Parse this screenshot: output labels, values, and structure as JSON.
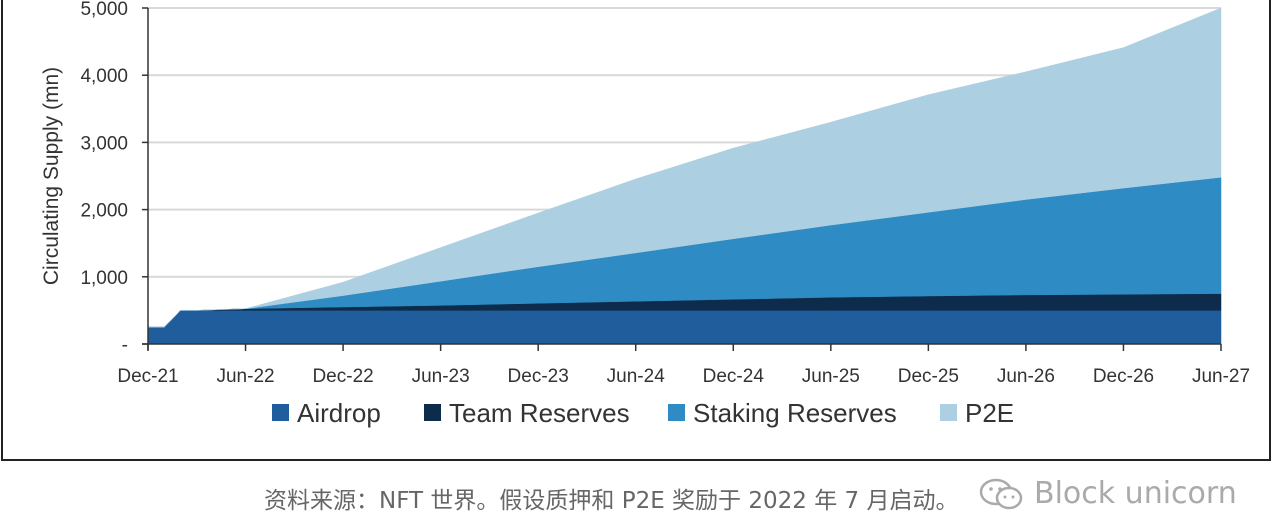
{
  "chart_data": {
    "type": "area",
    "stacked": true,
    "ylabel": "Circulating Supply (mn)",
    "xlabel": "",
    "ylim": [
      0,
      5000
    ],
    "yticks": [
      0,
      1000,
      2000,
      3000,
      4000,
      5000
    ],
    "ytick_labels": [
      "-",
      "1,000",
      "2,000",
      "3,000",
      "4,000",
      "5,000"
    ],
    "grid": "horizontal",
    "legend_position": "bottom",
    "x": [
      "Dec-21",
      "Jan-22",
      "Feb-22",
      "Mar-22",
      "Jun-22",
      "Dec-22",
      "Jun-23",
      "Dec-23",
      "Jun-24",
      "Dec-24",
      "Jun-25",
      "Dec-25",
      "Jun-26",
      "Dec-26",
      "Jun-27"
    ],
    "xtick_labels": [
      "Dec-21",
      "Jun-22",
      "Dec-22",
      "Jun-23",
      "Dec-23",
      "Jun-24",
      "Dec-24",
      "Jun-25",
      "Dec-25",
      "Jun-26",
      "Dec-26",
      "Jun-27"
    ],
    "series": [
      {
        "name": "Airdrop",
        "color": "#1f5d9c",
        "values": [
          250,
          250,
          500,
          500,
          500,
          500,
          500,
          500,
          500,
          500,
          500,
          500,
          500,
          500,
          500
        ]
      },
      {
        "name": "Team Reserves",
        "color": "#0d2b4a",
        "values": [
          0,
          0,
          0,
          0,
          25,
          50,
          75,
          105,
          135,
          165,
          195,
          215,
          230,
          240,
          250
        ]
      },
      {
        "name": "Staking Reserves",
        "color": "#2e8bc4",
        "values": [
          0,
          0,
          0,
          0,
          0,
          170,
          360,
          545,
          720,
          900,
          1075,
          1245,
          1420,
          1580,
          1730
        ]
      },
      {
        "name": "P2E",
        "color": "#adcfe2",
        "values": [
          0,
          0,
          0,
          0,
          0,
          200,
          500,
          800,
          1100,
          1350,
          1530,
          1750,
          1900,
          2090,
          2520
        ]
      }
    ]
  },
  "caption": "资料来源：NFT 世界。假设质押和 P2E 奖励于 2022 年 7 月启动。",
  "watermark": {
    "text": "Block unicorn",
    "icon": "wechat-icon"
  }
}
